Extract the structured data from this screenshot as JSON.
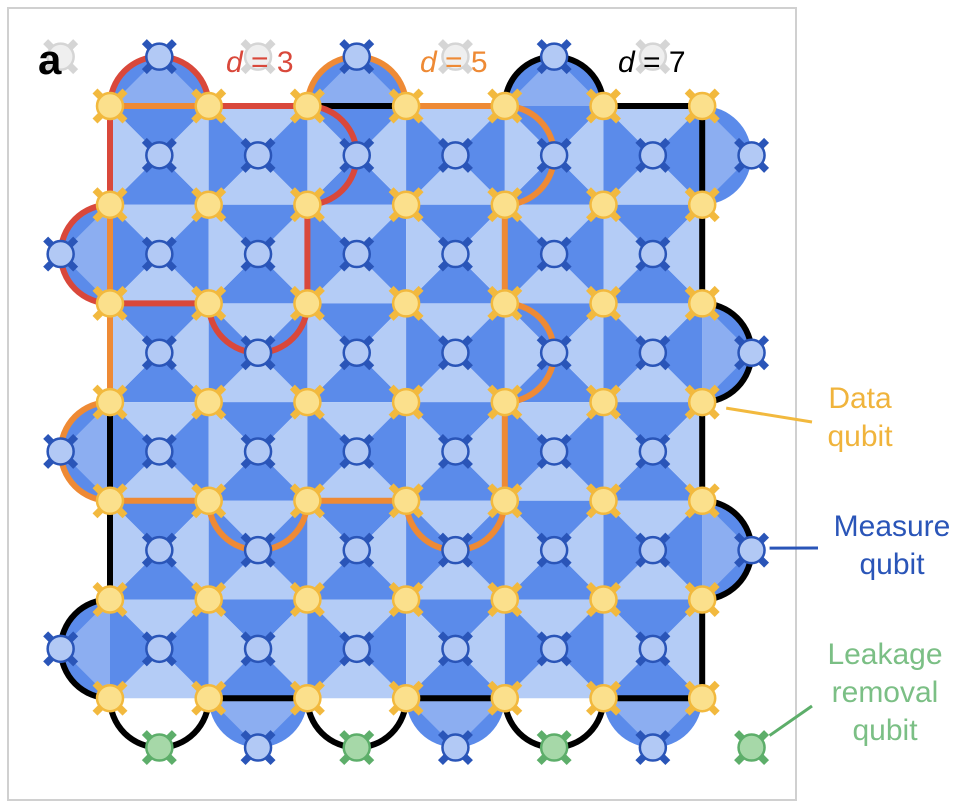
{
  "panel_label": "a",
  "distance_labels": [
    {
      "d": "d",
      "eq": "=",
      "n": "3",
      "color": "#D9483B"
    },
    {
      "d": "d",
      "eq": "=",
      "n": "5",
      "color": "#EE8A35"
    },
    {
      "d": "d",
      "eq": "=",
      "n": "7",
      "color": "#000000"
    }
  ],
  "legend": {
    "data_qubit": [
      "Data",
      "qubit"
    ],
    "measure_qubit": [
      "Measure",
      "qubit"
    ],
    "leakage_qubit": [
      "Leakage",
      "removal",
      "qubit"
    ]
  },
  "colors": {
    "dark_tile": "#5B8BEA",
    "light_tile": "#B4CCF6",
    "data_fill": "#FBE08C",
    "data_stroke": "#F2B93E",
    "measure_fill": "#B2C9F5",
    "measure_stroke": "#2A55B8",
    "leak_fill": "#A6D8A8",
    "leak_stroke": "#5DAE6A",
    "d3_color": "#D9483B",
    "d5_color": "#EE8A35",
    "d7_color": "#000000",
    "inactive": "#D5D5D5"
  }
}
